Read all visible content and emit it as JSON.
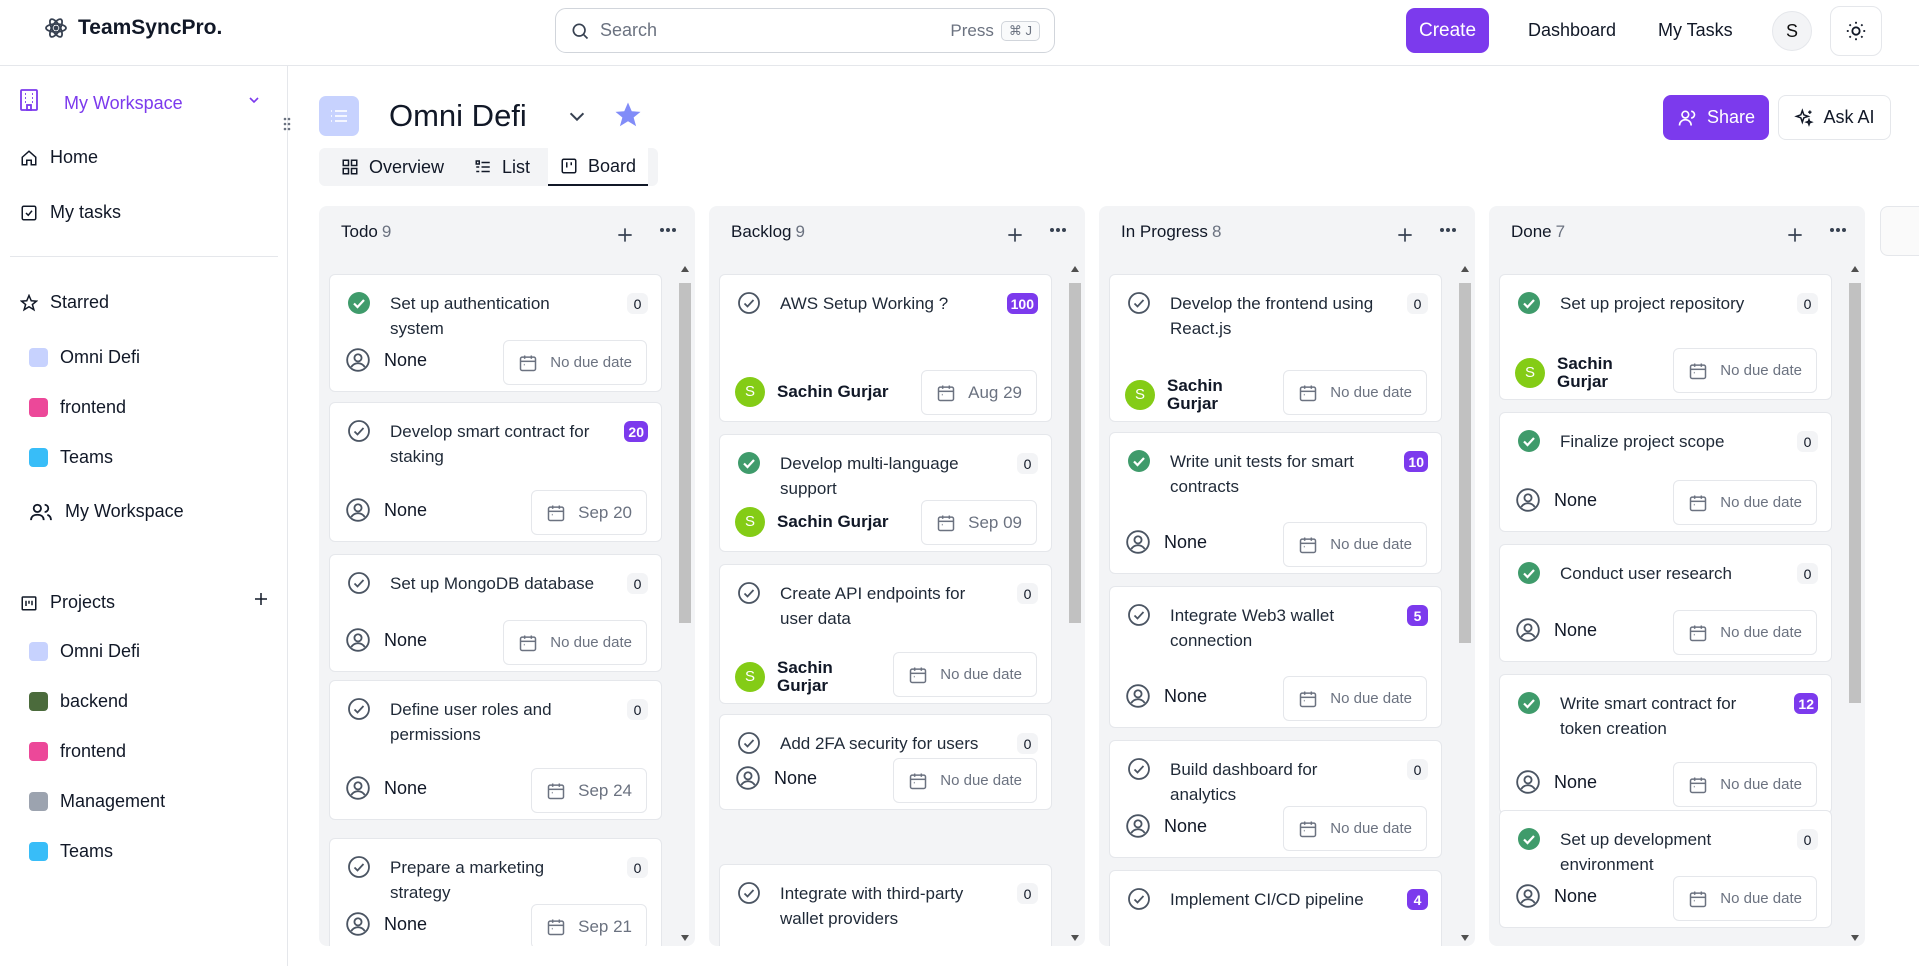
{
  "app": {
    "name": "TeamSyncPro."
  },
  "search": {
    "placeholder": "Search",
    "press_label": "Press",
    "shortcut": "⌘ J"
  },
  "header": {
    "create_label": "Create",
    "dashboard_label": "Dashboard",
    "mytasks_label": "My Tasks",
    "user_initial": "S"
  },
  "sidebar": {
    "workspace_label": "My Workspace",
    "home_label": "Home",
    "mytasks_label": "My tasks",
    "starred_label": "Starred",
    "starred_items": [
      {
        "label": "Omni Defi",
        "color": "#c7d2fe"
      },
      {
        "label": "frontend",
        "color": "#ec4899"
      },
      {
        "label": "Teams",
        "color": "#38bdf8"
      }
    ],
    "workspace_item_label": "My Workspace",
    "projects_label": "Projects",
    "project_items": [
      {
        "label": "Omni Defi",
        "color": "#c7d2fe"
      },
      {
        "label": "backend",
        "color": "#4b6b3c"
      },
      {
        "label": "frontend",
        "color": "#ec4899"
      },
      {
        "label": "Management",
        "color": "#9ca3af"
      },
      {
        "label": "Teams",
        "color": "#38bdf8"
      }
    ]
  },
  "project": {
    "title": "Omni Defi",
    "share_label": "Share",
    "ask_ai_label": "Ask AI"
  },
  "tabs": [
    {
      "label": "Overview"
    },
    {
      "label": "List"
    },
    {
      "label": "Board",
      "active": true
    }
  ],
  "accent": "#7c3aed",
  "columns": [
    {
      "title": "Todo",
      "count": "9",
      "cards": [
        {
          "title": "Set up authentication system",
          "done": true,
          "badge": "0",
          "assignee": "None",
          "due": "No due date"
        },
        {
          "title": "Develop smart contract for staking",
          "done": false,
          "badge": "20",
          "assignee": "None",
          "due": "Sep 20"
        },
        {
          "title": "Set up MongoDB database",
          "done": false,
          "badge": "0",
          "assignee": "None",
          "due": "No due date"
        },
        {
          "title": "Define user roles and permissions",
          "done": false,
          "badge": "0",
          "assignee": "None",
          "due": "Sep 24"
        },
        {
          "title": "Prepare a marketing strategy",
          "done": false,
          "badge": "0",
          "assignee": "None",
          "due": "Sep 21"
        }
      ]
    },
    {
      "title": "Backlog",
      "count": "9",
      "cards": [
        {
          "title": "AWS Setup Working ?",
          "done": false,
          "badge": "100",
          "assignee": "Sachin Gurjar",
          "initial": "S",
          "due": "Aug 29"
        },
        {
          "title": "Develop multi-language support",
          "done": true,
          "badge": "0",
          "assignee": "Sachin Gurjar",
          "initial": "S",
          "due": "Sep 09"
        },
        {
          "title": "Create API endpoints for user data",
          "done": false,
          "badge": "0",
          "assignee": "Sachin Gurjar",
          "initial": "S",
          "due": "No due date"
        },
        {
          "title": "Add 2FA security for users",
          "done": false,
          "badge": "0",
          "assignee": "None",
          "due": "No due date"
        },
        {
          "title": "Integrate with third-party wallet providers",
          "done": false,
          "badge": "0",
          "assignee": "",
          "due": ""
        }
      ]
    },
    {
      "title": "In Progress",
      "count": "8",
      "cards": [
        {
          "title": "Develop the frontend using React.js",
          "done": false,
          "badge": "0",
          "assignee": "Sachin Gurjar",
          "initial": "S",
          "due": "No due date"
        },
        {
          "title": "Write unit tests for smart contracts",
          "done": true,
          "badge": "10",
          "assignee": "None",
          "due": "No due date"
        },
        {
          "title": "Integrate Web3 wallet connection",
          "done": false,
          "badge": "5",
          "assignee": "None",
          "due": "No due date"
        },
        {
          "title": "Build dashboard for analytics",
          "done": false,
          "badge": "0",
          "assignee": "None",
          "due": "No due date"
        },
        {
          "title": "Implement CI/CD pipeline",
          "done": false,
          "badge": "4",
          "assignee": "",
          "due": ""
        }
      ]
    },
    {
      "title": "Done",
      "count": "7",
      "cards": [
        {
          "title": "Set up project repository",
          "done": true,
          "badge": "0",
          "assignee": "Sachin Gurjar",
          "initial": "S",
          "due": "No due date"
        },
        {
          "title": "Finalize project scope",
          "done": true,
          "badge": "0",
          "assignee": "None",
          "due": "No due date"
        },
        {
          "title": "Conduct user research",
          "done": true,
          "badge": "0",
          "assignee": "None",
          "due": "No due date"
        },
        {
          "title": "Write smart contract for token creation",
          "done": true,
          "badge": "12",
          "assignee": "None",
          "due": "No due date"
        },
        {
          "title": "Set up development environment",
          "done": true,
          "badge": "0",
          "assignee": "None",
          "due": "No due date"
        }
      ]
    }
  ]
}
